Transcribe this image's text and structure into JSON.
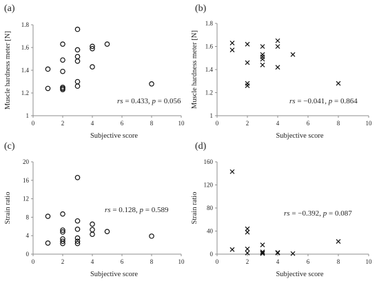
{
  "chart_data": [
    {
      "type": "scatter",
      "panel_label": "(a)",
      "marker": "circle",
      "xlabel": "Subjective score",
      "ylabel": "Muscle hardness meter [N]",
      "xlim": [
        0,
        10
      ],
      "ylim": [
        1,
        1.8
      ],
      "xticks": [
        "0",
        "2",
        "4",
        "6",
        "8",
        "10"
      ],
      "yticks": [
        "1",
        "1.2",
        "1.4",
        "1.6",
        "1.8"
      ],
      "annotation": {
        "rs_label": "rs",
        "text": " = 0.433, ",
        "p_label": "p",
        "p_text": " = 0.056"
      },
      "points": [
        {
          "x": 1,
          "y": 1.41
        },
        {
          "x": 1,
          "y": 1.24
        },
        {
          "x": 2,
          "y": 1.63
        },
        {
          "x": 2,
          "y": 1.49
        },
        {
          "x": 2,
          "y": 1.39
        },
        {
          "x": 2,
          "y": 1.25
        },
        {
          "x": 2,
          "y": 1.24
        },
        {
          "x": 2,
          "y": 1.23
        },
        {
          "x": 3,
          "y": 1.76
        },
        {
          "x": 3,
          "y": 1.58
        },
        {
          "x": 3,
          "y": 1.52
        },
        {
          "x": 3,
          "y": 1.48
        },
        {
          "x": 3,
          "y": 1.3
        },
        {
          "x": 3,
          "y": 1.26
        },
        {
          "x": 4,
          "y": 1.61
        },
        {
          "x": 4,
          "y": 1.59
        },
        {
          "x": 4,
          "y": 1.43
        },
        {
          "x": 5,
          "y": 1.63
        },
        {
          "x": 8,
          "y": 1.28
        }
      ]
    },
    {
      "type": "scatter",
      "panel_label": "(b)",
      "marker": "cross",
      "xlabel": "Subjective score",
      "ylabel": "Muscle hardness meter [N]",
      "xlim": [
        0,
        10
      ],
      "ylim": [
        1,
        1.8
      ],
      "xticks": [
        "0",
        "2",
        "4",
        "6",
        "8",
        "10"
      ],
      "yticks": [
        "1",
        "1.2",
        "1.4",
        "1.6",
        "1.8"
      ],
      "annotation": {
        "rs_label": "rs",
        "text": " = −0.041, ",
        "p_label": "p",
        "p_text": " = 0.864"
      },
      "points": [
        {
          "x": 1,
          "y": 1.63
        },
        {
          "x": 1,
          "y": 1.57
        },
        {
          "x": 2,
          "y": 1.62
        },
        {
          "x": 2,
          "y": 1.46
        },
        {
          "x": 2,
          "y": 1.28
        },
        {
          "x": 2,
          "y": 1.26
        },
        {
          "x": 3,
          "y": 1.6
        },
        {
          "x": 3,
          "y": 1.53
        },
        {
          "x": 3,
          "y": 1.51
        },
        {
          "x": 3,
          "y": 1.49
        },
        {
          "x": 3,
          "y": 1.44
        },
        {
          "x": 4,
          "y": 1.65
        },
        {
          "x": 4,
          "y": 1.6
        },
        {
          "x": 4,
          "y": 1.42
        },
        {
          "x": 5,
          "y": 1.53
        },
        {
          "x": 8,
          "y": 1.28
        }
      ]
    },
    {
      "type": "scatter",
      "panel_label": "(c)",
      "marker": "circle",
      "xlabel": "Subjective score",
      "ylabel": "Strain ratio",
      "xlim": [
        0,
        10
      ],
      "ylim": [
        0,
        20
      ],
      "xticks": [
        "0",
        "2",
        "4",
        "6",
        "8",
        "10"
      ],
      "yticks": [
        "0",
        "4",
        "8",
        "12",
        "16",
        "20"
      ],
      "annotation": {
        "rs_label": "rs",
        "text": " = 0.128, ",
        "p_label": "p",
        "p_text": " = 0.589"
      },
      "points": [
        {
          "x": 1,
          "y": 8.2
        },
        {
          "x": 1,
          "y": 2.4
        },
        {
          "x": 2,
          "y": 8.7
        },
        {
          "x": 2,
          "y": 5.2
        },
        {
          "x": 2,
          "y": 4.8
        },
        {
          "x": 2,
          "y": 3.3
        },
        {
          "x": 2,
          "y": 2.8
        },
        {
          "x": 2,
          "y": 2.3
        },
        {
          "x": 3,
          "y": 16.6
        },
        {
          "x": 3,
          "y": 7.2
        },
        {
          "x": 3,
          "y": 5.4
        },
        {
          "x": 3,
          "y": 3.5
        },
        {
          "x": 3,
          "y": 2.8
        },
        {
          "x": 3,
          "y": 2.3
        },
        {
          "x": 4,
          "y": 6.5
        },
        {
          "x": 4,
          "y": 5.3
        },
        {
          "x": 4,
          "y": 4.3
        },
        {
          "x": 5,
          "y": 4.9
        },
        {
          "x": 8,
          "y": 3.9
        }
      ]
    },
    {
      "type": "scatter",
      "panel_label": "(d)",
      "marker": "cross",
      "xlabel": "Subjective score",
      "ylabel": "Strain ratio",
      "xlim": [
        0,
        10
      ],
      "ylim": [
        0,
        160
      ],
      "xticks": [
        "0",
        "2",
        "4",
        "6",
        "8",
        "10"
      ],
      "yticks": [
        "0",
        "40",
        "80",
        "120",
        "160"
      ],
      "annotation": {
        "rs_label": "rs",
        "text": " = −0.392, ",
        "p_label": "p",
        "p_text": " = 0.087"
      },
      "points": [
        {
          "x": 1,
          "y": 143
        },
        {
          "x": 1,
          "y": 8
        },
        {
          "x": 2,
          "y": 44
        },
        {
          "x": 2,
          "y": 38
        },
        {
          "x": 2,
          "y": 9
        },
        {
          "x": 2,
          "y": 2
        },
        {
          "x": 3,
          "y": 16
        },
        {
          "x": 3,
          "y": 4
        },
        {
          "x": 3,
          "y": 2
        },
        {
          "x": 3,
          "y": 1
        },
        {
          "x": 4,
          "y": 3
        },
        {
          "x": 4,
          "y": 2
        },
        {
          "x": 5,
          "y": 1
        },
        {
          "x": 8,
          "y": 22
        }
      ]
    }
  ]
}
